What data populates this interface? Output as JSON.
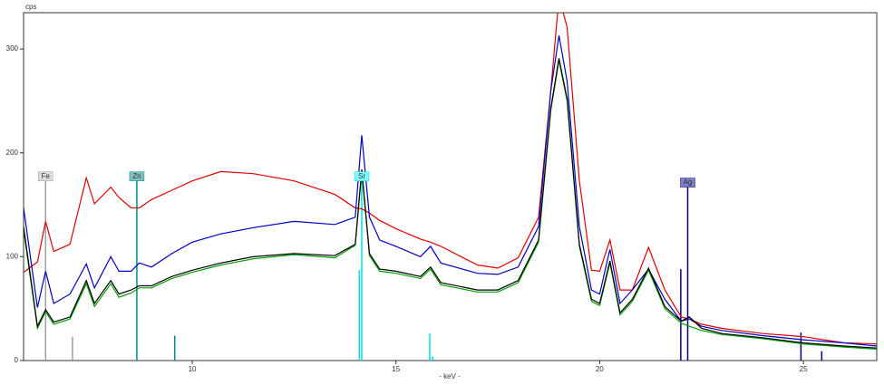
{
  "chart_data": {
    "type": "line",
    "y_label": "cps",
    "x_label": "- keV -",
    "xlim": [
      5.86,
      26.8
    ],
    "ylim": [
      0,
      335
    ],
    "xticks": [
      10,
      15,
      20,
      25
    ],
    "yticks": [
      0,
      100,
      200,
      300
    ],
    "x": [
      5.86,
      6.2,
      6.4,
      6.6,
      7.0,
      7.4,
      7.6,
      8.0,
      8.2,
      8.5,
      8.7,
      9.0,
      9.5,
      10,
      10.7,
      11.5,
      12.5,
      13.5,
      14.0,
      14.16,
      14.35,
      14.6,
      15,
      15.6,
      15.85,
      16.1,
      17,
      17.5,
      18,
      18.5,
      18.8,
      19.0,
      19.2,
      19.5,
      19.8,
      20.0,
      20.25,
      20.5,
      20.8,
      21.2,
      21.6,
      22.0,
      22.2,
      22.5,
      23,
      24,
      25,
      26,
      26.8
    ],
    "series": [
      {
        "color": "#e00000",
        "values": [
          85,
          95,
          134,
          105,
          112,
          176,
          151,
          167,
          157,
          147,
          147,
          155,
          164,
          173,
          182,
          180,
          173,
          160,
          147,
          146,
          142,
          135,
          127,
          117,
          114,
          110,
          92,
          89,
          99,
          138,
          260,
          350,
          321,
          173,
          87,
          86,
          116,
          68,
          68,
          109,
          68,
          42,
          40,
          35,
          31,
          26,
          23,
          17,
          16
        ]
      },
      {
        "color": "#0000c0",
        "values": [
          147,
          51,
          86,
          55,
          64,
          93,
          70,
          100,
          86,
          86,
          94,
          90,
          103,
          114,
          122,
          128,
          134,
          131,
          138,
          217,
          138,
          116,
          110,
          100,
          110,
          94,
          84,
          83,
          90,
          129,
          260,
          313,
          269,
          129,
          68,
          64,
          107,
          55,
          68,
          88,
          59,
          38,
          40,
          33,
          29,
          24,
          20,
          17,
          14
        ]
      },
      {
        "color": "#00a000",
        "values": [
          126,
          31,
          47,
          35,
          40,
          74,
          52,
          74,
          61,
          65,
          70,
          70,
          79,
          85,
          92,
          98,
          102,
          99,
          111,
          182,
          101,
          86,
          84,
          79,
          88,
          73,
          66,
          66,
          75,
          114,
          241,
          289,
          250,
          110,
          57,
          53,
          94,
          44,
          57,
          87,
          50,
          36,
          33,
          29,
          25,
          21,
          16,
          13,
          11
        ]
      },
      {
        "color": "#000000",
        "values": [
          129,
          33,
          49,
          37,
          42,
          77,
          55,
          77,
          64,
          68,
          72,
          72,
          81,
          87,
          94,
          100,
          103,
          101,
          112,
          184,
          103,
          88,
          86,
          81,
          90,
          75,
          68,
          68,
          77,
          116,
          243,
          291,
          252,
          112,
          59,
          55,
          96,
          46,
          59,
          89,
          52,
          38,
          42,
          31,
          26,
          22,
          17,
          14,
          12
        ]
      }
    ],
    "elements": [
      {
        "label": "Fe",
        "color": "#a0a0a0",
        "box": "#dcdcdc",
        "energies": [
          6.4,
          7.06
        ],
        "heights": [
          173,
          23
        ]
      },
      {
        "label": "Zn",
        "color": "#008b8b",
        "box": "#80c0c0",
        "energies": [
          8.64,
          9.57
        ],
        "heights": [
          173,
          24
        ]
      },
      {
        "label": "Sr",
        "color": "#00e0e0",
        "box": "#80ffff",
        "energies": [
          14.16,
          14.1,
          15.83,
          15.9
        ],
        "heights": [
          173,
          87,
          26,
          4
        ]
      },
      {
        "label": "Ag",
        "color": "#000080",
        "box": "#8080c8",
        "energies": [
          22.16,
          21.99,
          24.94,
          25.45
        ],
        "heights": [
          167,
          88,
          27,
          9
        ]
      }
    ]
  }
}
